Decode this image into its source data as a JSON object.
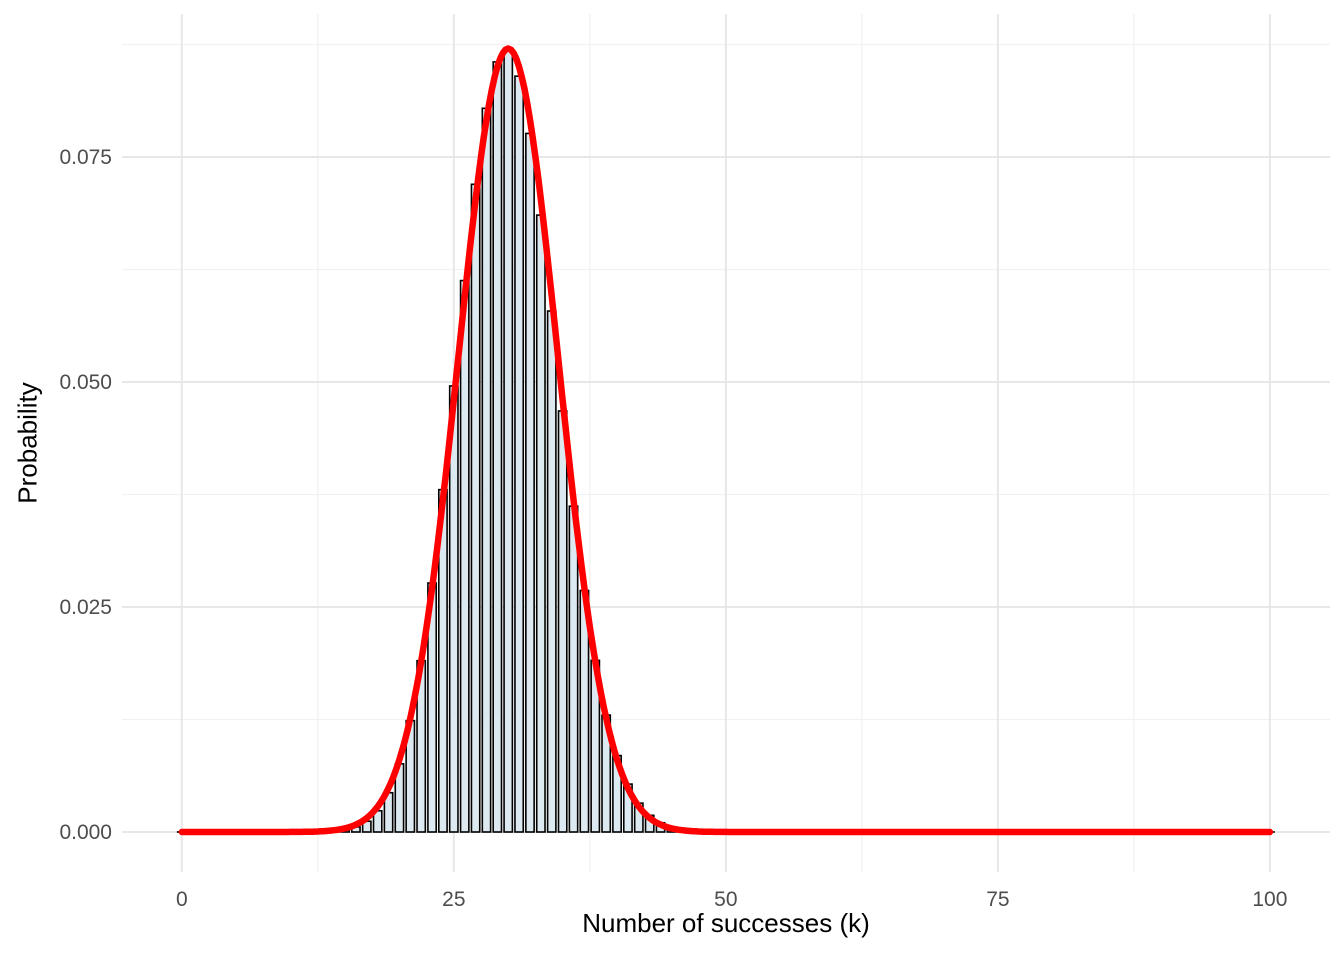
{
  "chart_data": {
    "type": "bar",
    "subtype": "binomial-pmf-histogram-with-normal-approximation-curve",
    "title": "",
    "xlabel": "Number of successes (k)",
    "ylabel": "Probability",
    "x_ticks": [
      0,
      25,
      50,
      75,
      100
    ],
    "x_tick_labels": [
      "0",
      "25",
      "50",
      "75",
      "100"
    ],
    "x_minor_ticks": [
      12.5,
      37.5,
      62.5,
      87.5
    ],
    "y_ticks": [
      0,
      0.025,
      0.05,
      0.075
    ],
    "y_tick_labels": [
      "0.000",
      "0.025",
      "0.050",
      "0.075"
    ],
    "y_minor_ticks": [
      0.0125,
      0.0375,
      0.0625,
      0.0875
    ],
    "xlim": [
      -5.5,
      105.5
    ],
    "ylim": [
      -0.00444,
      0.0909
    ],
    "grid": true,
    "legend": false,
    "k_start": 0,
    "pmf": [
      0,
      0,
      0,
      0,
      0,
      0,
      0,
      0,
      0,
      0,
      1e-06,
      4e-06,
      1.3e-05,
      3.8e-05,
      0.000101,
      0.000248,
      0.000564,
      0.001194,
      0.00236,
      0.004365,
      0.007576,
      0.012369,
      0.019035,
      0.027665,
      0.03804,
      0.04956,
      0.061269,
      0.071967,
      0.080412,
      0.085562,
      0.086784,
      0.083985,
      0.077617,
      0.068544,
      0.057888,
      0.046782,
      0.036201,
      0.026837,
      0.019068,
      0.012992,
      0.008491,
      0.005325,
      0.003206,
      0.001853,
      0.001029,
      0.000549,
      0.000281,
      0.000139,
      6.6e-05,
      3e-05,
      1.3e-05,
      6e-06,
      2e-06,
      1e-06,
      0,
      0,
      0,
      0,
      0,
      0,
      0,
      0,
      0,
      0,
      0,
      0,
      0,
      0,
      0,
      0,
      0,
      0,
      0,
      0,
      0,
      0,
      0,
      0,
      0,
      0,
      0,
      0,
      0,
      0,
      0,
      0,
      0,
      0,
      0,
      0,
      0,
      0,
      0,
      0,
      0,
      0,
      0,
      0,
      0,
      0,
      0
    ],
    "distribution": {
      "name": "binomial",
      "n": 100,
      "p": 0.3
    },
    "curve": {
      "name": "normal-approximation",
      "mean": 30,
      "sd": 4.5826,
      "peak": 0.08706
    },
    "colors": {
      "background": "#FFFFFF",
      "bar_fill": "#DCE9F0",
      "bar_stroke": "#000000",
      "curve": "#FF0000",
      "grid_major": "#E7E7E7",
      "grid_minor": "#F1F1F1",
      "tick_label": "#4D4D4D",
      "axis_title": "#000000"
    }
  }
}
